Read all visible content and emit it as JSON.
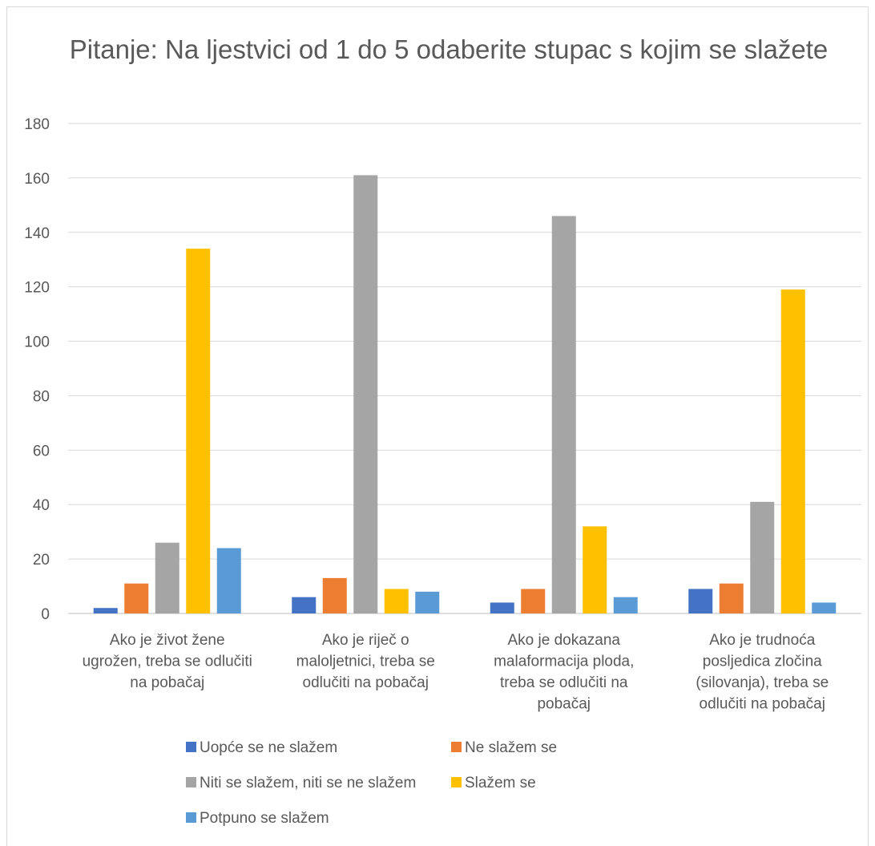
{
  "chart_data": {
    "type": "bar",
    "title": "Pitanje: Na ljestvici od 1 do 5 odaberite stupac s kojim se slažete",
    "xlabel": "",
    "ylabel": "",
    "ylim": [
      0,
      180
    ],
    "yticks": [
      0,
      20,
      40,
      60,
      80,
      100,
      120,
      140,
      160,
      180
    ],
    "grid": true,
    "legend_position": "bottom",
    "categories": [
      [
        "Ako je život žene",
        "ugrožen, treba se odlučiti",
        "na pobačaj"
      ],
      [
        "Ako je riječ o",
        "maloljetnici, treba se",
        "odlučiti na pobačaj"
      ],
      [
        "Ako je dokazana",
        "malaformacija ploda,",
        "treba se odlučiti na",
        "pobačaj"
      ],
      [
        "Ako je trudnoća",
        "posljedica zločina",
        "(silovanja), treba se",
        "odlučiti na pobačaj"
      ]
    ],
    "series": [
      {
        "name": "Uopće se ne slažem",
        "color": "#4472c4",
        "values": [
          2,
          6,
          4,
          9
        ]
      },
      {
        "name": "Ne slažem se",
        "color": "#ed7d31",
        "values": [
          11,
          13,
          9,
          11
        ]
      },
      {
        "name": "Niti se slažem, niti se ne slažem",
        "color": "#a5a5a5",
        "values": [
          26,
          161,
          146,
          41
        ]
      },
      {
        "name": "Slažem se",
        "color": "#ffc000",
        "values": [
          134,
          9,
          32,
          119
        ]
      },
      {
        "name": "Potpuno se slažem",
        "color": "#5b9bd5",
        "values": [
          24,
          8,
          6,
          4
        ]
      }
    ]
  }
}
